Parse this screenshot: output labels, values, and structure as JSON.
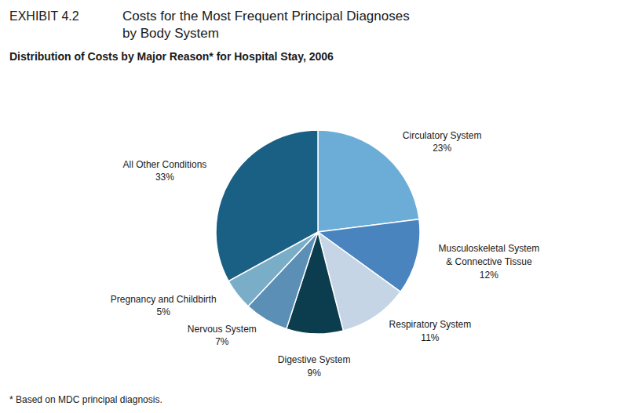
{
  "chart_data": {
    "type": "pie",
    "title": "Costs for the Most Frequent Principal Diagnoses\nby Body System",
    "subtitle": "Distribution of Costs by Major Reason* for Hospital Stay, 2006",
    "annotations": [
      "EXHIBIT 4.2",
      "* Based on MDC principal diagnosis."
    ],
    "categories": [
      "Circulatory System",
      "Musculoskeletal System\n& Connective Tissue",
      "Respiratory System",
      "Digestive System",
      "Nervous System",
      "Pregnancy and Childbirth",
      "All Other Conditions"
    ],
    "values": [
      23,
      12,
      11,
      9,
      7,
      5,
      33
    ],
    "value_labels": [
      "23%",
      "12%",
      "11%",
      "9%",
      "7%",
      "5%",
      "33%"
    ],
    "colors": [
      "#6badd6",
      "#4a84be",
      "#c5d5e5",
      "#0c3d4e",
      "#5b8fb5",
      "#7aaec8",
      "#1a5f84"
    ]
  }
}
